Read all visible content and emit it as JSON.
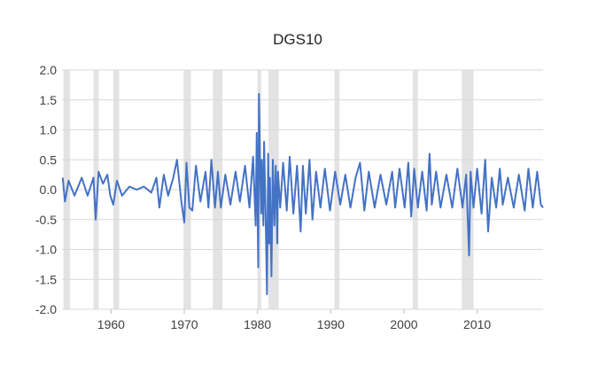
{
  "chart_data": {
    "type": "line",
    "title": "DGS10",
    "xlabel": "",
    "ylabel": "",
    "xlim": [
      1953.3,
      2019.0
    ],
    "ylim": [
      -2.0,
      2.0
    ],
    "y_ticks": [
      "2.0",
      "1.5",
      "1.0",
      "0.5",
      "0.0",
      "-0.5",
      "-1.0",
      "-1.5",
      "-2.0"
    ],
    "y_tick_values": [
      2.0,
      1.5,
      1.0,
      0.5,
      0.0,
      -0.5,
      -1.0,
      -1.5,
      -2.0
    ],
    "x_ticks": [
      "1960",
      "1970",
      "1980",
      "1990",
      "2000",
      "2010"
    ],
    "x_tick_values": [
      1960,
      1970,
      1980,
      1990,
      2000,
      2010
    ],
    "grid": "horizontal",
    "legend": "none",
    "recession_shading": [
      [
        1953.5,
        1954.4
      ],
      [
        1957.6,
        1958.3
      ],
      [
        1960.3,
        1961.1
      ],
      [
        1969.9,
        1970.9
      ],
      [
        1973.9,
        1975.2
      ],
      [
        1980.0,
        1980.5
      ],
      [
        1981.5,
        1982.9
      ],
      [
        1990.5,
        1991.2
      ],
      [
        2001.2,
        2001.9
      ],
      [
        2007.9,
        2009.5
      ]
    ],
    "series": [
      {
        "color": "#4472c4",
        "x": [
          1953.4,
          1953.7,
          1954.2,
          1955.0,
          1956.0,
          1956.8,
          1957.6,
          1957.9,
          1958.3,
          1958.9,
          1959.5,
          1959.9,
          1960.3,
          1960.8,
          1961.5,
          1962.5,
          1963.5,
          1964.5,
          1965.5,
          1966.2,
          1966.6,
          1967.2,
          1967.8,
          1968.5,
          1969.0,
          1969.6,
          1970.0,
          1970.3,
          1970.7,
          1971.1,
          1971.6,
          1972.2,
          1972.9,
          1973.3,
          1973.7,
          1974.2,
          1974.6,
          1975.0,
          1975.6,
          1976.3,
          1977.0,
          1977.6,
          1978.3,
          1978.9,
          1979.4,
          1979.75,
          1979.9,
          1980.1,
          1980.2,
          1980.35,
          1980.5,
          1980.6,
          1980.8,
          1980.9,
          1981.1,
          1981.3,
          1981.45,
          1981.6,
          1981.7,
          1981.9,
          1982.1,
          1982.3,
          1982.5,
          1982.7,
          1982.8,
          1983.1,
          1983.5,
          1984.0,
          1984.4,
          1984.9,
          1985.4,
          1985.9,
          1986.2,
          1986.6,
          1987.1,
          1987.5,
          1988.0,
          1988.6,
          1989.2,
          1989.9,
          1990.6,
          1991.3,
          1992.0,
          1992.7,
          1993.4,
          1994.0,
          1994.6,
          1995.2,
          1996.0,
          1996.8,
          1997.6,
          1998.4,
          1998.8,
          1999.4,
          2000.1,
          2000.6,
          2001.0,
          2001.4,
          2001.9,
          2002.5,
          2003.1,
          2003.5,
          2003.8,
          2004.4,
          2005.0,
          2005.8,
          2006.6,
          2007.3,
          2008.0,
          2008.5,
          2008.9,
          2009.1,
          2009.5,
          2010.0,
          2010.6,
          2011.1,
          2011.5,
          2012.0,
          2012.6,
          2013.1,
          2013.5,
          2014.2,
          2015.0,
          2015.7,
          2016.5,
          2017.0,
          2017.6,
          2018.2,
          2018.7,
          2019.0
        ],
        "y": [
          0.2,
          -0.2,
          0.15,
          -0.1,
          0.2,
          -0.1,
          0.2,
          -0.5,
          0.3,
          0.1,
          0.25,
          -0.1,
          -0.25,
          0.15,
          -0.1,
          0.05,
          0.0,
          0.05,
          -0.05,
          0.2,
          -0.3,
          0.25,
          -0.1,
          0.2,
          0.5,
          -0.2,
          -0.55,
          0.45,
          -0.3,
          -0.35,
          0.4,
          -0.2,
          0.3,
          -0.3,
          0.5,
          -0.3,
          0.3,
          -0.3,
          0.25,
          -0.25,
          0.3,
          -0.2,
          0.4,
          -0.3,
          0.55,
          -0.6,
          0.95,
          -1.3,
          1.6,
          0.4,
          -0.4,
          0.5,
          -0.6,
          0.8,
          -0.4,
          -1.75,
          0.6,
          -0.9,
          0.2,
          -1.45,
          0.5,
          -0.6,
          0.4,
          -0.9,
          0.3,
          -0.3,
          0.45,
          -0.35,
          0.55,
          -0.4,
          0.4,
          -0.7,
          0.4,
          -0.4,
          0.5,
          -0.5,
          0.3,
          -0.3,
          0.35,
          -0.35,
          0.3,
          -0.25,
          0.25,
          -0.3,
          0.2,
          0.45,
          -0.35,
          0.3,
          -0.3,
          0.25,
          -0.25,
          0.3,
          -0.3,
          0.35,
          -0.3,
          0.45,
          -0.45,
          0.35,
          -0.3,
          0.3,
          -0.35,
          0.6,
          -0.25,
          0.3,
          -0.3,
          0.25,
          -0.3,
          0.35,
          -0.3,
          0.25,
          -1.1,
          0.3,
          -0.3,
          0.35,
          -0.4,
          0.5,
          -0.7,
          0.2,
          -0.3,
          0.35,
          -0.25,
          0.2,
          -0.3,
          0.25,
          -0.35,
          0.35,
          -0.3,
          0.3,
          -0.25,
          -0.3
        ]
      }
    ]
  }
}
